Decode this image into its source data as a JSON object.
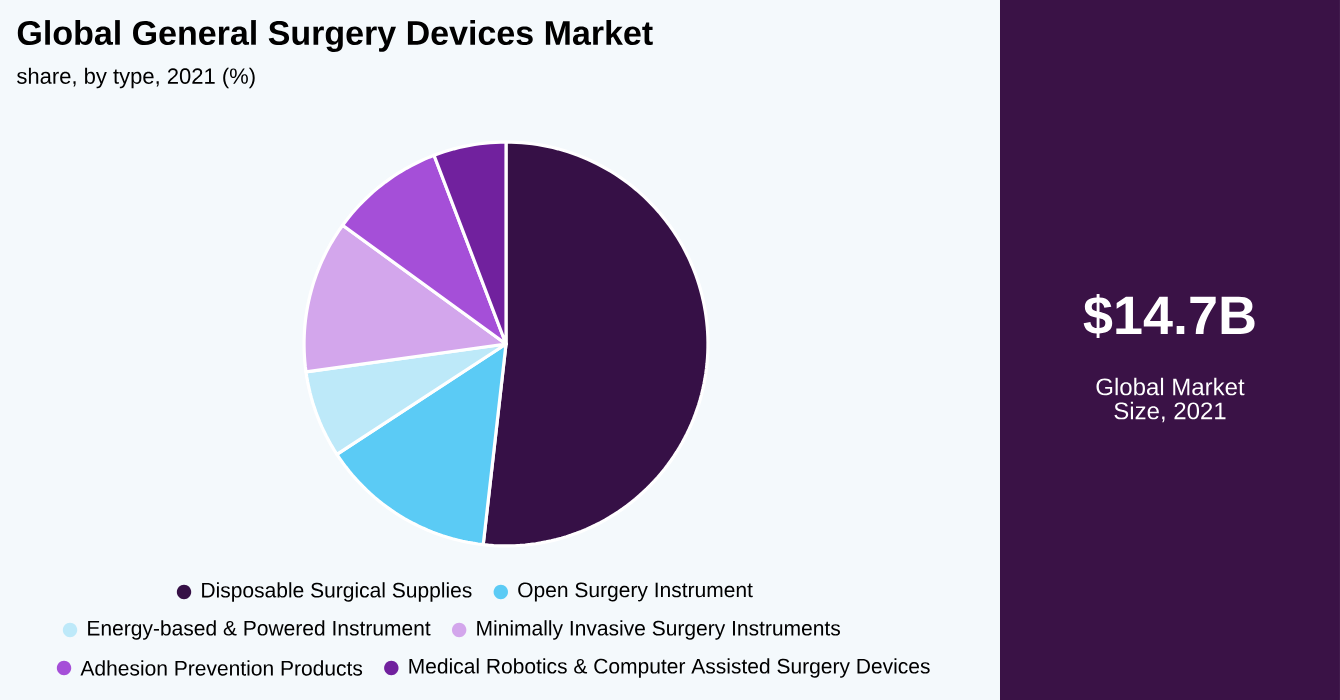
{
  "chart_data": {
    "type": "pie",
    "title": "Global General Surgery Devices Market",
    "subtitle": "share, by type, 2021 (%)",
    "categories": [
      "Disposable Surgical Supplies",
      "Open Surgery Instrument",
      "Energy-based & Powered Instrument",
      "Minimally Invasive Surgery Instruments",
      "Adhesion Prevention Products",
      "Medical Robotics & Computer Assisted Surgery Devices"
    ],
    "values": [
      51.8,
      14,
      7,
      12.2,
      9.2,
      5.8
    ],
    "colors": [
      "#361046",
      "#5bcbf5",
      "#bde9f9",
      "#d3a6ec",
      "#a54fd8",
      "#71219e"
    ],
    "legend": "bottom",
    "annotations": [
      "$14.7B",
      "Global Market Size, 2021"
    ]
  }
}
